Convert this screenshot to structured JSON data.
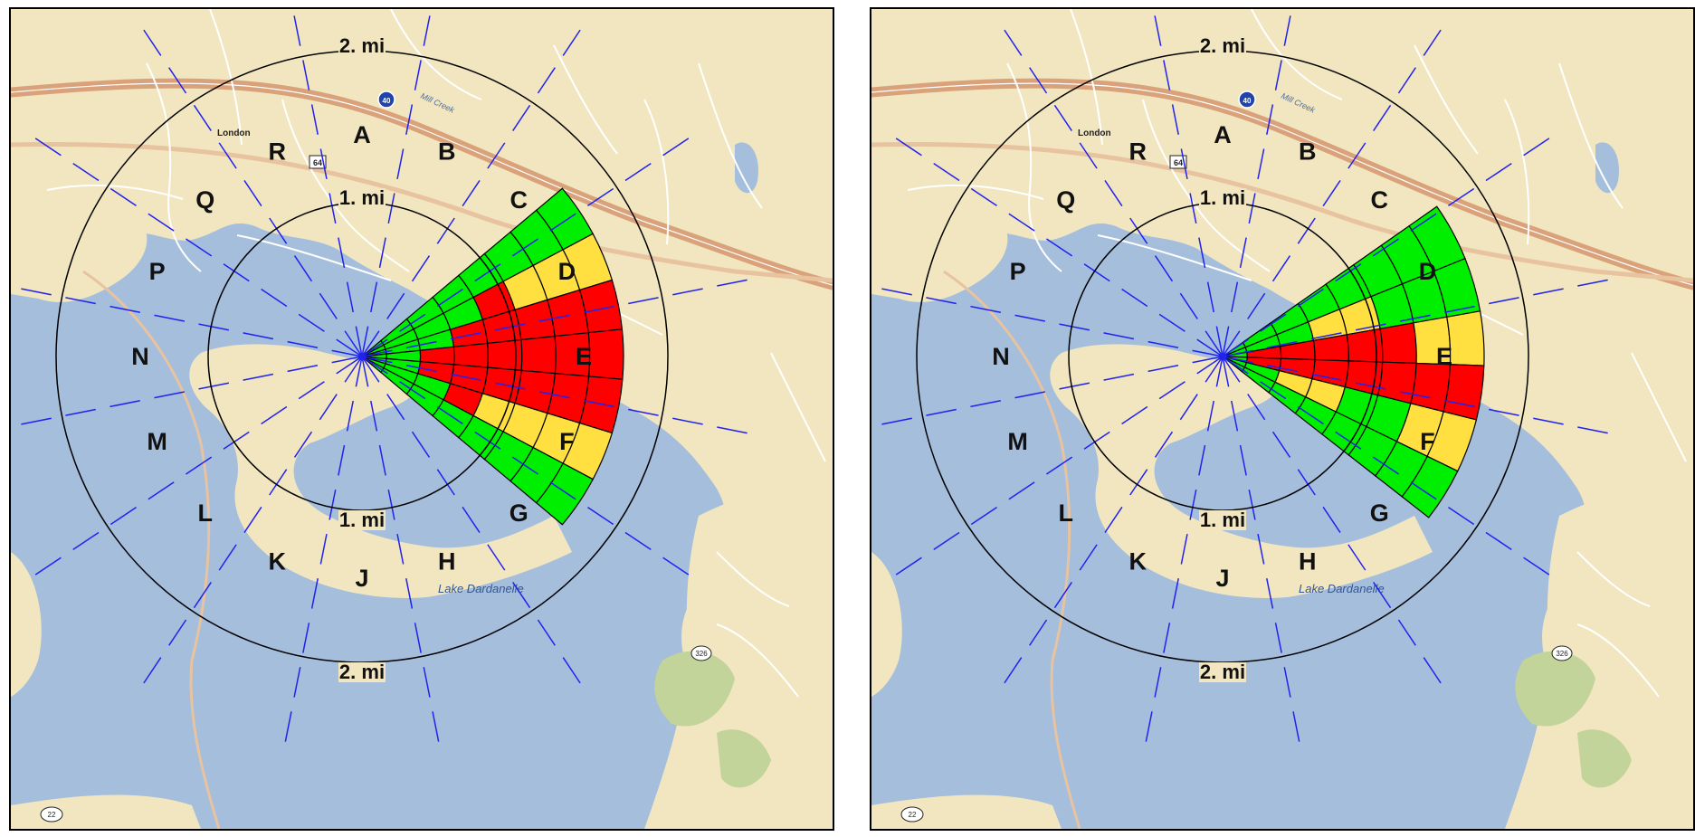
{
  "colors": {
    "land": "#f2e6c0",
    "water": "#a5bedc",
    "highway": "#d9a27a",
    "road": "#e8c3a0",
    "minor_road": "#ffffff",
    "park": "#c2d49a",
    "red": "#ff0000",
    "yellow": "#ffe040",
    "green": "#00ee00",
    "radial": "#2222ee",
    "ring": "#000000"
  },
  "panels": [
    {
      "id": "left",
      "ring_labels": {
        "outer_top": "2. mi",
        "inner_top": "1. mi",
        "inner_bottom": "1. mi",
        "outer_bottom": "2. mi"
      },
      "sector_labels": [
        "A",
        "B",
        "C",
        "D",
        "E",
        "F",
        "G",
        "H",
        "J",
        "K",
        "L",
        "M",
        "N",
        "P",
        "Q",
        "R"
      ],
      "map_labels": {
        "town": "London",
        "lake": "Lake Dardanelle",
        "creek": "Mill Creek",
        "interstate": "40",
        "us_route": "64",
        "state_route_1": "326",
        "state_route_2": "22"
      },
      "plume": {
        "description_level_order": [
          "inner-to-outer"
        ],
        "wedges": [
          {
            "start_deg": 50,
            "end_deg": 62,
            "levels": [
              "G",
              "G",
              "G",
              "G",
              "G",
              "G",
              "G",
              "G"
            ]
          },
          {
            "start_deg": 62,
            "end_deg": 73,
            "levels": [
              "G",
              "G",
              "G",
              "G",
              "R",
              "Y",
              "Y",
              "Y"
            ]
          },
          {
            "start_deg": 73,
            "end_deg": 84,
            "levels": [
              "G",
              "G",
              "G",
              "R",
              "R",
              "R",
              "R",
              "R"
            ]
          },
          {
            "start_deg": 84,
            "end_deg": 95,
            "levels": [
              "G",
              "G",
              "R",
              "R",
              "R",
              "R",
              "R",
              "R"
            ]
          },
          {
            "start_deg": 95,
            "end_deg": 107,
            "levels": [
              "G",
              "G",
              "R",
              "R",
              "R",
              "R",
              "R",
              "R"
            ]
          },
          {
            "start_deg": 107,
            "end_deg": 118,
            "levels": [
              "G",
              "G",
              "G",
              "R",
              "Y",
              "Y",
              "Y",
              "Y"
            ]
          },
          {
            "start_deg": 118,
            "end_deg": 130,
            "levels": [
              "G",
              "G",
              "G",
              "G",
              "G",
              "G",
              "G",
              "G"
            ]
          }
        ]
      }
    },
    {
      "id": "right",
      "ring_labels": {
        "outer_top": "2. mi",
        "inner_top": "1. mi",
        "inner_bottom": "1. mi",
        "outer_bottom": "2. mi"
      },
      "sector_labels": [
        "A",
        "B",
        "C",
        "D",
        "E",
        "F",
        "G",
        "H",
        "J",
        "K",
        "L",
        "M",
        "N",
        "P",
        "Q",
        "R"
      ],
      "map_labels": {
        "town": "London",
        "lake": "Lake Dardanelle",
        "creek": "Mill Creek",
        "interstate": "40",
        "us_route": "64",
        "state_route_1": "326",
        "state_route_2": "22"
      },
      "plume": {
        "wedges": [
          {
            "start_deg": 55,
            "end_deg": 68,
            "levels": [
              "G",
              "G",
              "G",
              "G",
              "G",
              "G",
              "G",
              "G"
            ]
          },
          {
            "start_deg": 68,
            "end_deg": 80,
            "levels": [
              "G",
              "G",
              "G",
              "Y",
              "Y",
              "G",
              "G",
              "G"
            ]
          },
          {
            "start_deg": 80,
            "end_deg": 92,
            "levels": [
              "G",
              "R",
              "R",
              "R",
              "R",
              "R",
              "Y",
              "Y"
            ]
          },
          {
            "start_deg": 92,
            "end_deg": 104,
            "levels": [
              "G",
              "R",
              "R",
              "R",
              "R",
              "R",
              "R",
              "R"
            ]
          },
          {
            "start_deg": 104,
            "end_deg": 116,
            "levels": [
              "G",
              "G",
              "Y",
              "Y",
              "G",
              "G",
              "Y",
              "Y"
            ]
          },
          {
            "start_deg": 116,
            "end_deg": 128,
            "levels": [
              "G",
              "G",
              "G",
              "G",
              "G",
              "G",
              "G",
              "G"
            ]
          }
        ]
      }
    }
  ]
}
